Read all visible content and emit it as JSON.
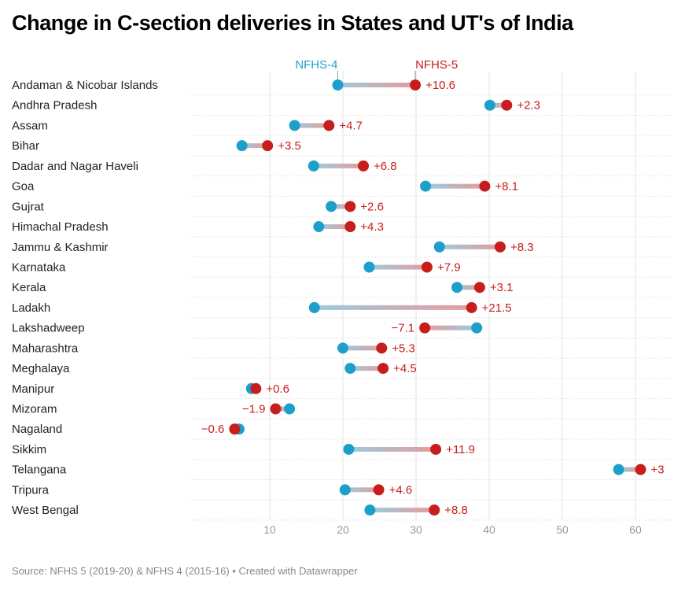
{
  "chart_data": {
    "type": "dumbbell",
    "title": "Change in C-section deliveries in States and UT's of India",
    "source": "Source: NFHS 5 (2019-20) & NFHS 4 (2015-16) • Created with Datawrapper",
    "xlim": [
      -1,
      65
    ],
    "xticks": [
      10,
      20,
      30,
      40,
      50,
      60
    ],
    "grid": true,
    "colors": {
      "nfhs4": "#1d9fcc",
      "nfhs5": "#c71e1d"
    },
    "series": [
      {
        "name": "NFHS-4",
        "values": [
          19.3,
          40.1,
          13.4,
          6.2,
          16.0,
          31.3,
          18.4,
          16.7,
          33.2,
          23.6,
          35.6,
          16.1,
          38.3,
          20.0,
          21.0,
          7.5,
          12.7,
          5.8,
          20.8,
          57.7,
          20.3,
          23.7
        ]
      },
      {
        "name": "NFHS-5",
        "values": [
          29.9,
          42.4,
          18.1,
          9.7,
          22.8,
          39.4,
          21.0,
          21.0,
          41.5,
          31.5,
          38.7,
          37.6,
          31.2,
          25.3,
          25.5,
          8.1,
          10.8,
          5.2,
          32.7,
          60.7,
          24.9,
          32.5
        ]
      }
    ],
    "categories": [
      "Andaman & Nicobar Islands",
      "Andhra Pradesh",
      "Assam",
      "Bihar",
      "Dadar and Nagar Haveli",
      "Goa",
      "Gujrat",
      "Himachal Pradesh",
      "Jammu & Kashmir",
      "Karnataka",
      "Kerala",
      "Ladakh",
      "Lakshadweep",
      "Maharashtra",
      "Meghalaya",
      "Manipur",
      "Mizoram",
      "Nagaland",
      "Sikkim",
      "Telangana",
      "Tripura",
      "West Bengal"
    ],
    "change_labels": [
      "+10.6",
      "+2.3",
      "+4.7",
      "+3.5",
      "+6.8",
      "+8.1",
      "+2.6",
      "+4.3",
      "+8.3",
      "+7.9",
      "+3.1",
      "+21.5",
      "−7.1",
      "+5.3",
      "+4.5",
      "+0.6",
      "−1.9",
      "−0.6",
      "+11.9",
      "+3",
      "+4.6",
      "+8.8"
    ]
  }
}
